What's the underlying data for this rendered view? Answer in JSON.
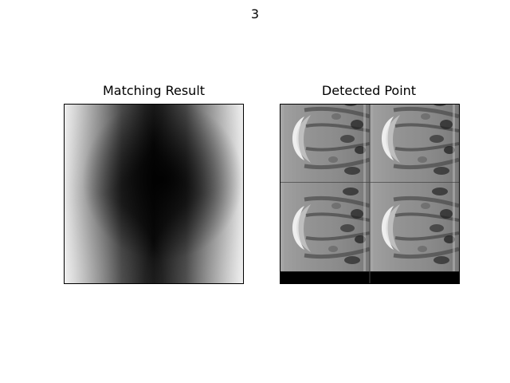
{
  "figure": {
    "suptitle": "3"
  },
  "panels": [
    {
      "title": "Matching Result",
      "image": "grayscale-correlation-map"
    },
    {
      "title": "Detected Point",
      "image": "grayscale-tiled-texture"
    }
  ]
}
